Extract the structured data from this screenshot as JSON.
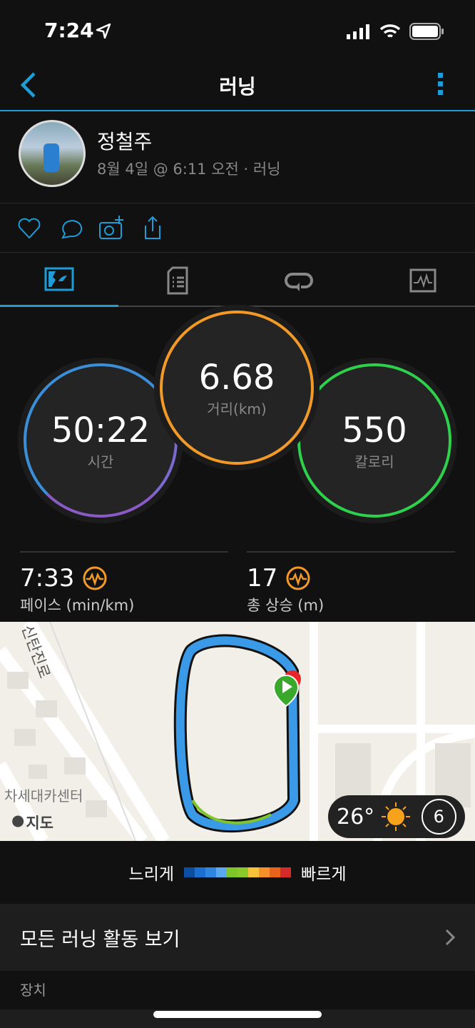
{
  "status": {
    "time": "7:24"
  },
  "nav": {
    "title": "러닝"
  },
  "profile": {
    "name": "정철주",
    "subtitle": "8월 4일 @ 6:11 오전 · 러닝"
  },
  "tabs": [
    {
      "icon": "map-summary-icon",
      "active": true
    },
    {
      "icon": "details-icon"
    },
    {
      "icon": "laps-icon"
    },
    {
      "icon": "chart-icon"
    }
  ],
  "metrics": {
    "time": {
      "value": "50:22",
      "label": "시간",
      "color": "#3b8fd9"
    },
    "distance": {
      "value": "6.68",
      "label": "거리(km)",
      "color": "#f39a26"
    },
    "calories": {
      "value": "550",
      "label": "칼로리",
      "color": "#2ed14b"
    }
  },
  "stats": {
    "pace": {
      "value": "7:33",
      "label": "페이스 (min/km)"
    },
    "elevation": {
      "value": "17",
      "label": "총 상승 (m)"
    }
  },
  "map": {
    "labels": {
      "road": "신탄진로",
      "place": "차세대카센터",
      "attribution": "지도"
    },
    "weather": {
      "temp": "26°",
      "wind": "6"
    }
  },
  "legend": {
    "slow": "느리게",
    "fast": "빠르게",
    "colors": [
      "#0b4ea2",
      "#1a6fd0",
      "#2e86e0",
      "#5aa9ef",
      "#7ec42a",
      "#8bc82a",
      "#f8c13a",
      "#f6902a",
      "#e8641a",
      "#d42a2a"
    ]
  },
  "all_runs": {
    "label": "모든 러닝 활동 보기"
  },
  "section": {
    "device": "장치"
  },
  "accent": "#1f9bd6"
}
